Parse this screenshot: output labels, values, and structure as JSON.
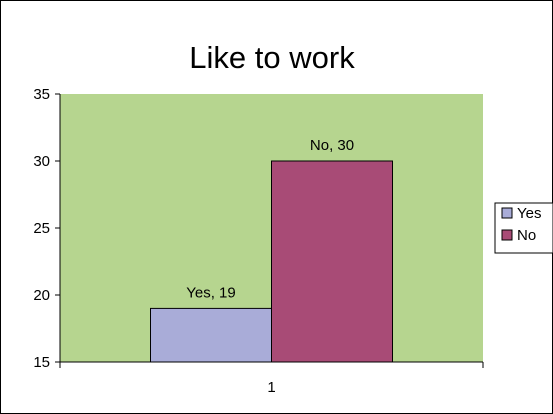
{
  "chart_data": {
    "type": "bar",
    "title": "Like to work",
    "categories": [
      "1"
    ],
    "series": [
      {
        "name": "Yes",
        "values": [
          19
        ],
        "color": "#a9acd8",
        "data_label": "Yes, 19"
      },
      {
        "name": "No",
        "values": [
          30
        ],
        "color": "#a84b76",
        "data_label": "No, 30"
      }
    ],
    "ylim": [
      15,
      35
    ],
    "yticks": [
      "15",
      "20",
      "25",
      "30",
      "35"
    ],
    "plot_background": "#b6d58f",
    "grid": false,
    "legend_position": "right"
  }
}
